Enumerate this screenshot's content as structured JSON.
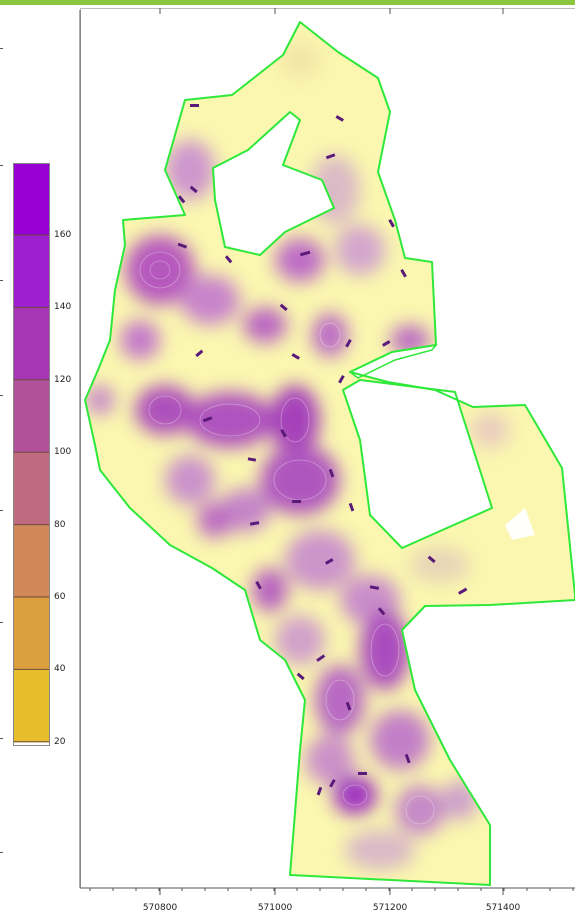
{
  "legend": {
    "stops": [
      {
        "value": "160",
        "color": "#9e1fcf"
      },
      {
        "value": "140",
        "color": "#a736b4"
      },
      {
        "value": "120",
        "color": "#b2509a"
      },
      {
        "value": "100",
        "color": "#c06a7f"
      },
      {
        "value": "80",
        "color": "#d08858"
      },
      {
        "value": "60",
        "color": "#dba03d"
      },
      {
        "value": "40",
        "color": "#e6bd2a"
      },
      {
        "value": "20",
        "color": "#f7e31f"
      }
    ],
    "top_color": "#9600d2"
  },
  "x_axis": {
    "ticks": [
      "570800",
      "571000",
      "571200",
      "571400"
    ]
  },
  "boundary_color": "#2ee83a",
  "colors": {
    "low": "#fbf7a6",
    "mid": "#d9a9c8",
    "high": "#a02fc0"
  }
}
